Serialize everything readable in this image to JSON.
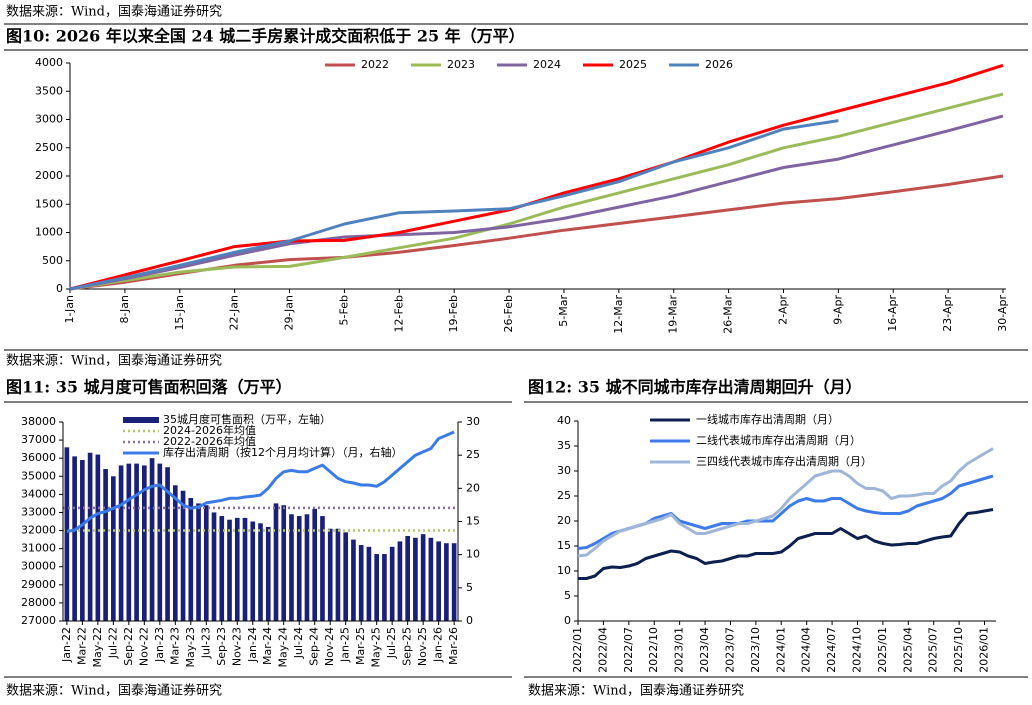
{
  "page_top_note": "数据来源：Wind，国泰海通证券研究",
  "chart_data": [
    {
      "type": "line",
      "title": "图10:  2026 年以来全国 24 城二手房累计成交面积低于 25 年（万平）",
      "source": "数据来源：Wind，国泰海通证券研究",
      "categories": [
        "1-Jan",
        "8-Jan",
        "15-Jan",
        "22-Jan",
        "29-Jan",
        "5-Feb",
        "12-Feb",
        "19-Feb",
        "26-Feb",
        "5-Mar",
        "12-Mar",
        "19-Mar",
        "26-Mar",
        "2-Apr",
        "9-Apr",
        "16-Apr",
        "23-Apr",
        "30-Apr"
      ],
      "series": [
        {
          "name": "2022",
          "color": "#c0504d",
          "values": [
            0,
            120,
            270,
            420,
            520,
            560,
            650,
            770,
            900,
            1040,
            1160,
            1280,
            1400,
            1520,
            1600,
            1720,
            1850,
            2000
          ]
        },
        {
          "name": "2023",
          "color": "#9bbb59",
          "values": [
            0,
            150,
            300,
            390,
            400,
            560,
            730,
            900,
            1150,
            1450,
            1700,
            1950,
            2200,
            2500,
            2700,
            2950,
            3200,
            3450
          ]
        },
        {
          "name": "2024",
          "color": "#8064a2",
          "values": [
            0,
            180,
            380,
            600,
            800,
            920,
            960,
            1000,
            1100,
            1250,
            1450,
            1650,
            1900,
            2150,
            2300,
            2550,
            2800,
            3060
          ]
        },
        {
          "name": "2025",
          "color": "#ff0000",
          "values": [
            0,
            250,
            500,
            750,
            850,
            860,
            1000,
            1200,
            1400,
            1700,
            1950,
            2250,
            2600,
            2900,
            3150,
            3400,
            3650,
            3960
          ]
        },
        {
          "name": "2026",
          "color": "#4f81bd",
          "values": [
            0,
            200,
            420,
            650,
            850,
            1150,
            1350,
            1380,
            1420,
            1650,
            1900,
            2250,
            2500,
            2830,
            2980,
            null,
            null,
            null
          ]
        }
      ],
      "ylim": [
        0,
        4000
      ],
      "yticks": [
        0,
        500,
        1000,
        1500,
        2000,
        2500,
        3000,
        3500,
        4000
      ],
      "grid": false,
      "legend": "top"
    },
    {
      "type": "combo",
      "title": "图11:  35 城月度可售面积回落（万平）",
      "source": "数据来源：Wind，国泰海通证券研究",
      "categories": [
        "Jan-22",
        null,
        "Mar-22",
        null,
        "May-22",
        null,
        "Jul-22",
        null,
        "Sep-22",
        null,
        "Nov-22",
        null,
        "Jan-23",
        null,
        "Mar-23",
        null,
        "May-23",
        null,
        "Jul-23",
        null,
        "Sep-23",
        null,
        "Nov-23",
        null,
        "Jan-24",
        null,
        "Mar-24",
        null,
        "May-24",
        null,
        "Jul-24",
        null,
        "Sep-24",
        null,
        "Nov-24",
        null,
        "Jan-25",
        null,
        "Mar-25",
        null,
        "May-25",
        null,
        "Jul-25",
        null,
        "Sep-25",
        null,
        "Nov-25",
        null,
        "Jan-26",
        null,
        "Mar-26"
      ],
      "series": [
        {
          "name": "35城月度可售面积（万平，左轴）",
          "type": "bar",
          "color": "#1a1f7a",
          "values": [
            36600,
            36100,
            35900,
            36300,
            36200,
            35400,
            35000,
            35600,
            35700,
            35700,
            35600,
            36000,
            35700,
            35500,
            34500,
            34200,
            33800,
            33500,
            33400,
            33000,
            32800,
            32600,
            32700,
            32700,
            32500,
            32400,
            32200,
            33500,
            33400,
            32900,
            32800,
            32900,
            33200,
            32800,
            32100,
            32100,
            31900,
            31500,
            31200,
            31100,
            30700,
            30700,
            31100,
            31400,
            31700,
            31600,
            31800,
            31600,
            31400,
            31300,
            31300
          ]
        },
        {
          "name": "2024-2026年均值",
          "type": "hline",
          "color": "#b6c56a",
          "value": 32000
        },
        {
          "name": "2022-2026年均值",
          "type": "hline",
          "color": "#8a6fa8",
          "value": 33250
        },
        {
          "name": "库存出清周期（按12个月月均计算）（月，右轴）",
          "type": "line",
          "axis": "y2",
          "color": "#3b7be8",
          "values": [
            13.5,
            13.7,
            14.5,
            15.5,
            16.2,
            16.5,
            17,
            17.5,
            18.3,
            19,
            19.8,
            20.3,
            20.5,
            19.5,
            18.5,
            17.5,
            17,
            17.2,
            17.8,
            18,
            18.2,
            18.5,
            18.5,
            18.7,
            18.8,
            19,
            20,
            21.5,
            22.5,
            22.7,
            22.5,
            22.5,
            23,
            23.5,
            22.5,
            21.5,
            21,
            20.8,
            20.5,
            20.5,
            20.3,
            21,
            22,
            23,
            24,
            25,
            25.5,
            26,
            27.5,
            28,
            28.5
          ]
        }
      ],
      "ylim": [
        27000,
        38000
      ],
      "yticks": [
        27000,
        28000,
        29000,
        30000,
        31000,
        32000,
        33000,
        34000,
        35000,
        36000,
        37000,
        38000
      ],
      "y2lim": [
        0,
        30
      ],
      "y2ticks": [
        0,
        5,
        10,
        15,
        20,
        25,
        30
      ],
      "grid": false,
      "legend": "top-left"
    },
    {
      "type": "line",
      "title": "图12:  35 城不同城市库存出清周期回升（月）",
      "source": "数据来源：Wind，国泰海通证券研究",
      "categories": [
        "2022/01",
        null,
        null,
        "2022/04",
        null,
        null,
        "2022/07",
        null,
        null,
        "2022/10",
        null,
        null,
        "2023/01",
        null,
        null,
        "2023/04",
        null,
        null,
        "2023/07",
        null,
        null,
        "2023/10",
        null,
        null,
        "2024/01",
        null,
        null,
        "2024/04",
        null,
        null,
        "2024/07",
        null,
        null,
        "2024/10",
        null,
        null,
        "2025/01",
        null,
        null,
        "2025/04",
        null,
        null,
        "2025/07",
        null,
        null,
        "2025/10",
        null,
        null,
        "2026/01",
        null
      ],
      "series": [
        {
          "name": "一线城市库存出清周期（月）",
          "color": "#0d1f4f",
          "values": [
            8.5,
            8.5,
            9,
            10.5,
            10.8,
            10.7,
            11,
            11.5,
            12.5,
            13,
            13.5,
            14,
            13.8,
            13,
            12.5,
            11.5,
            11.8,
            12,
            12.5,
            13,
            13,
            13.5,
            13.5,
            13.5,
            13.8,
            15,
            16.5,
            17,
            17.5,
            17.5,
            17.5,
            18.5,
            17.5,
            16.5,
            17,
            16,
            15.5,
            15.2,
            15.3,
            15.5,
            15.5,
            16,
            16.5,
            16.8,
            17,
            19.5,
            21.5,
            21.7,
            22,
            22.3
          ]
        },
        {
          "name": "二线代表城市库存出清周期（月）",
          "color": "#3d7bea",
          "values": [
            14.5,
            14.7,
            15.5,
            16.5,
            17.5,
            18,
            18.5,
            19,
            19.5,
            20.5,
            21,
            21.5,
            20,
            19.5,
            19,
            18.5,
            19,
            19.5,
            19.5,
            19.5,
            20,
            20,
            20,
            20,
            21.5,
            23,
            24,
            24.5,
            24,
            24,
            24.5,
            24.5,
            23.5,
            22.5,
            22,
            21.7,
            21.5,
            21.5,
            21.5,
            22,
            23,
            23.5,
            24,
            24.5,
            25.5,
            27,
            27.5,
            28,
            28.5,
            29
          ]
        },
        {
          "name": "三四线代表城市库存出清周期（月）",
          "color": "#9fb6d9",
          "values": [
            13,
            13.2,
            14.5,
            16,
            17,
            18,
            18.5,
            19,
            19.5,
            20,
            20.5,
            21.3,
            19.5,
            18.5,
            17.5,
            17.5,
            18,
            18.5,
            19,
            19.5,
            19.5,
            20,
            20.5,
            21,
            22.5,
            24.5,
            26,
            27.5,
            29,
            29.5,
            30,
            30,
            29,
            27.5,
            26.5,
            26.5,
            26,
            24.5,
            25,
            25,
            25.2,
            25.5,
            25.5,
            27,
            28,
            30,
            31.5,
            32.5,
            33.5,
            34.5
          ]
        }
      ],
      "ylim": [
        0,
        40
      ],
      "yticks": [
        0,
        5,
        10,
        15,
        20,
        25,
        30,
        35,
        40
      ],
      "grid": false,
      "legend": "top-left"
    }
  ]
}
